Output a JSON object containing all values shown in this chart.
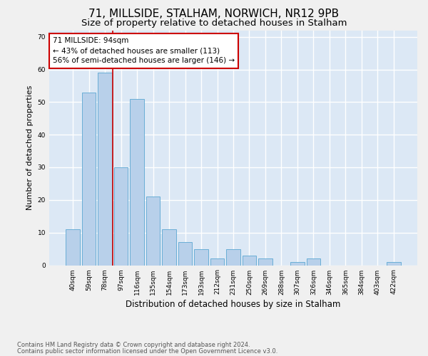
{
  "title1": "71, MILLSIDE, STALHAM, NORWICH, NR12 9PB",
  "title2": "Size of property relative to detached houses in Stalham",
  "xlabel": "Distribution of detached houses by size in Stalham",
  "ylabel": "Number of detached properties",
  "categories": [
    "40sqm",
    "59sqm",
    "78sqm",
    "97sqm",
    "116sqm",
    "135sqm",
    "154sqm",
    "173sqm",
    "193sqm",
    "212sqm",
    "231sqm",
    "250sqm",
    "269sqm",
    "288sqm",
    "307sqm",
    "326sqm",
    "346sqm",
    "365sqm",
    "384sqm",
    "403sqm",
    "422sqm"
  ],
  "values": [
    11,
    53,
    59,
    30,
    51,
    21,
    11,
    7,
    5,
    2,
    5,
    3,
    2,
    0,
    1,
    2,
    0,
    0,
    0,
    0,
    1
  ],
  "bar_color": "#b8d0ea",
  "bar_edge_color": "#6aaed6",
  "highlight_label": "71 MILLSIDE: 94sqm\n← 43% of detached houses are smaller (113)\n56% of semi-detached houses are larger (146) →",
  "annotation_box_color": "#ffffff",
  "annotation_box_edge_color": "#cc0000",
  "vline_color": "#cc0000",
  "vline_x_index": 2,
  "ylim": [
    0,
    72
  ],
  "yticks": [
    0,
    10,
    20,
    30,
    40,
    50,
    60,
    70
  ],
  "fig_bg_color": "#f0f0f0",
  "plot_bg_color": "#dce8f5",
  "grid_color": "#ffffff",
  "footer1": "Contains HM Land Registry data © Crown copyright and database right 2024.",
  "footer2": "Contains public sector information licensed under the Open Government Licence v3.0.",
  "title1_fontsize": 11,
  "title2_fontsize": 9.5,
  "xlabel_fontsize": 8.5,
  "ylabel_fontsize": 8,
  "tick_fontsize": 6.5,
  "annot_fontsize": 7.5,
  "footer_fontsize": 6
}
